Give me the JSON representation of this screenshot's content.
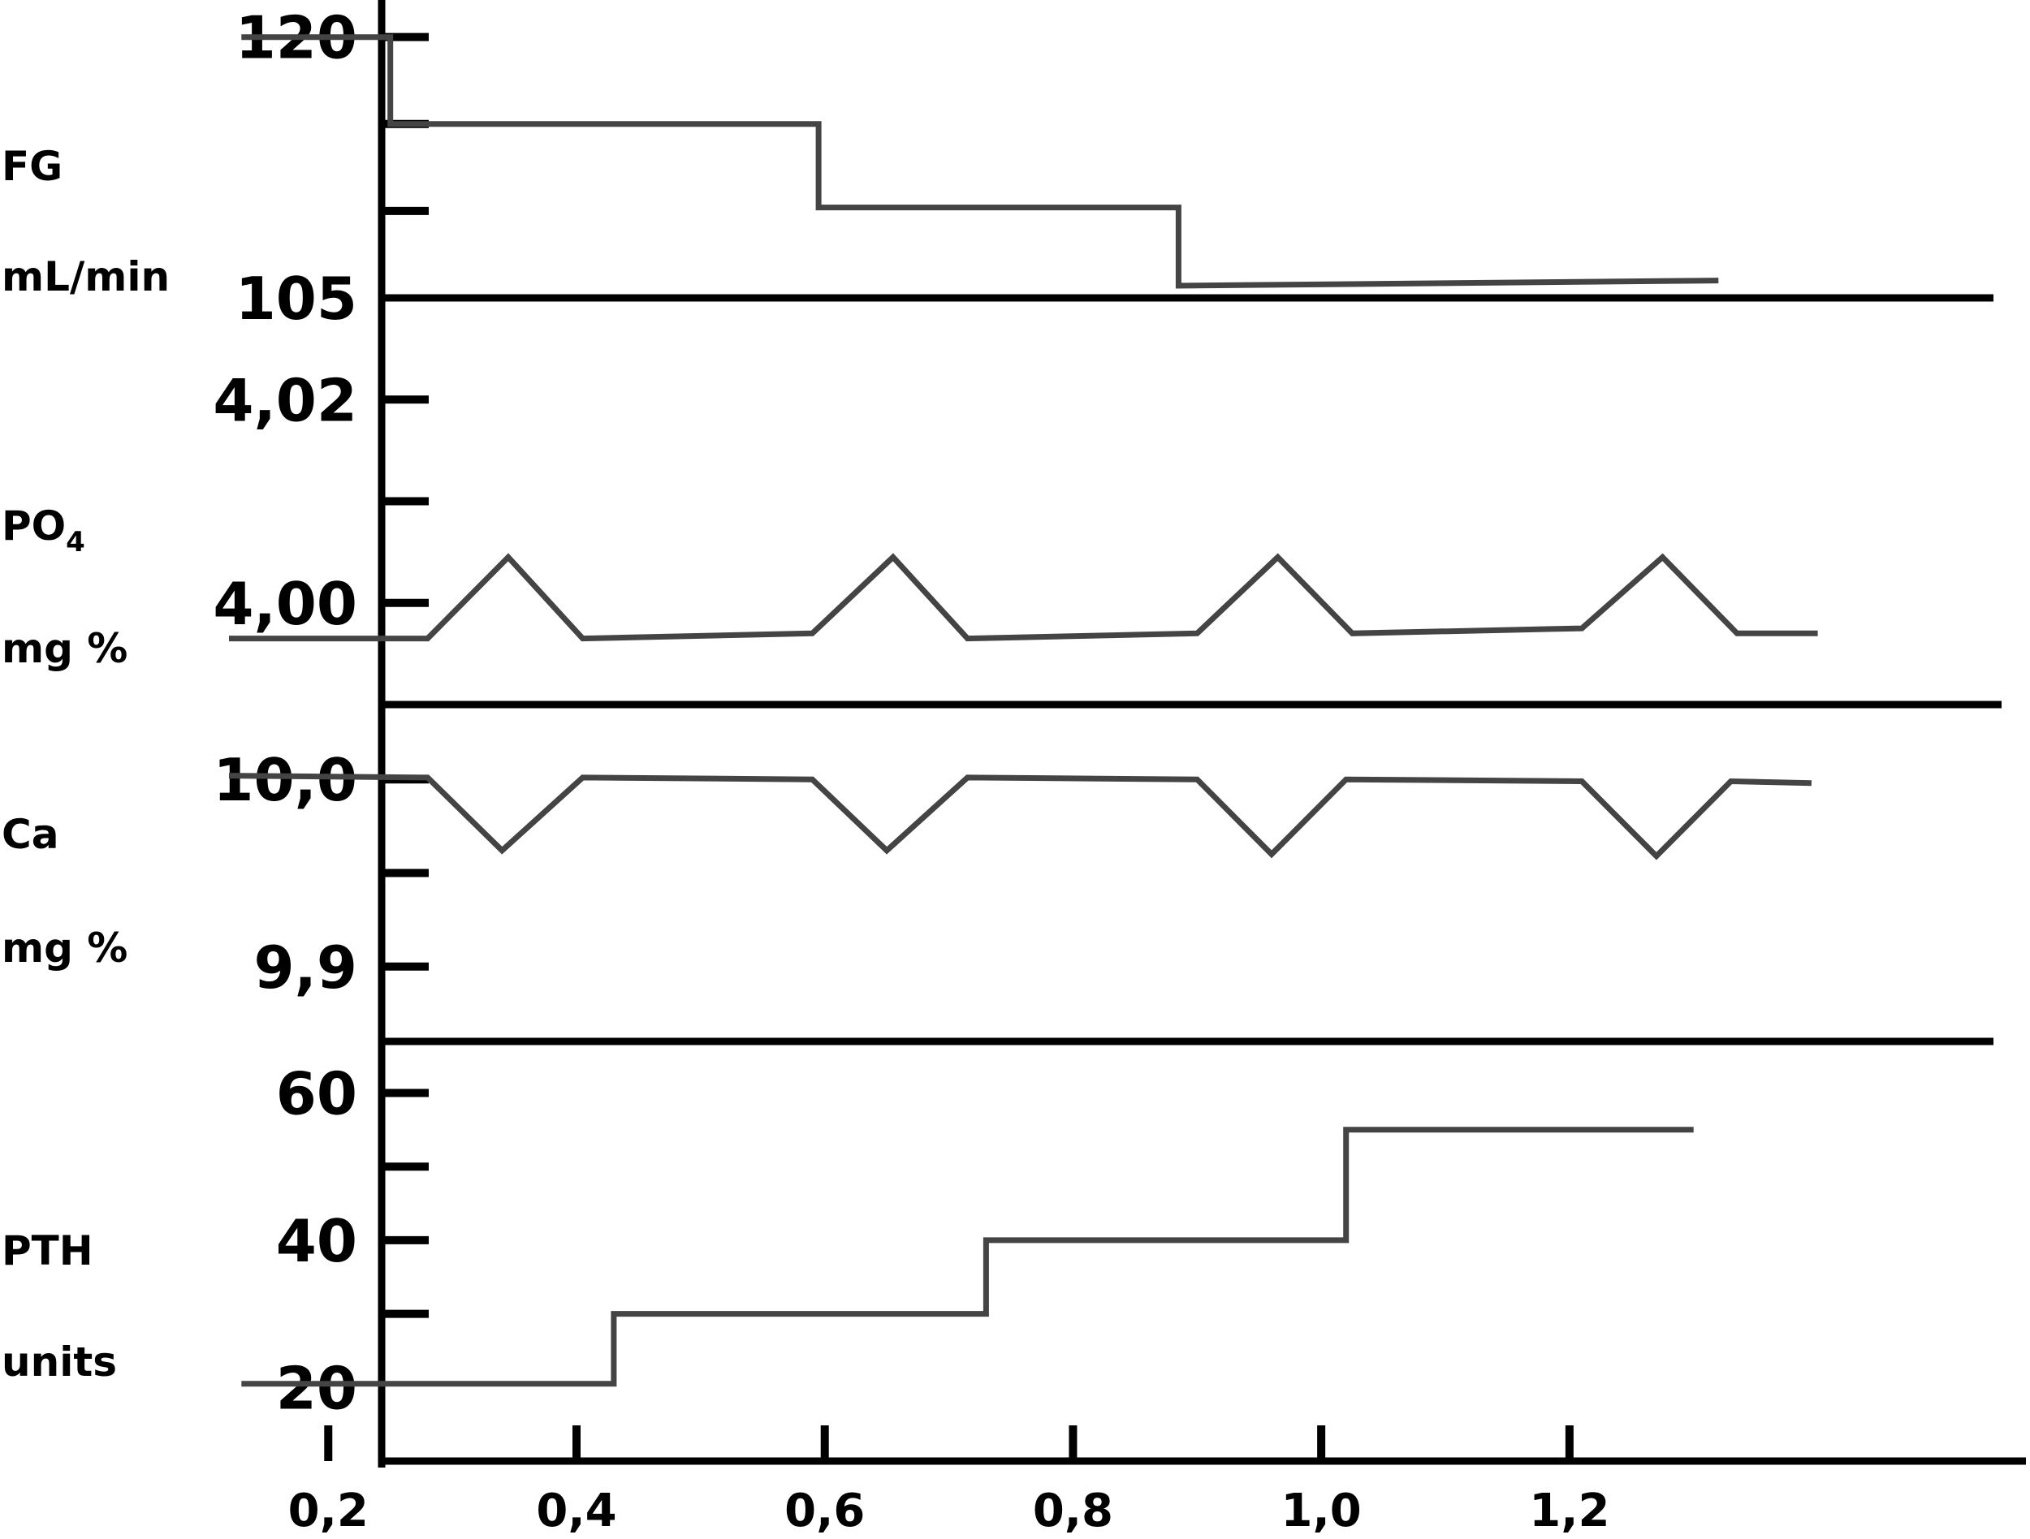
{
  "chart_data": {
    "type": "line",
    "x_tick_labels": [
      "0,2",
      "0,4",
      "0,6",
      "0,8",
      "1,0",
      "1,2"
    ],
    "x_ticks": [
      0.2,
      0.4,
      0.6,
      0.8,
      1.0,
      1.2
    ],
    "xlim": [
      0.05,
      1.45
    ],
    "grid": false,
    "legend": "none",
    "series_color": "#444444",
    "axis_color": "#000000",
    "panels": [
      {
        "id": "fg",
        "label_main": "FG",
        "label_unit": "mL/min",
        "ylim": [
          105,
          124
        ],
        "y_ticks": [
          120,
          115,
          110
        ],
        "y_tick_labels": [
          {
            "value": 120,
            "text": "120"
          },
          {
            "value": 105,
            "text": "105"
          }
        ],
        "points": [
          [
            0.13,
            120
          ],
          [
            0.25,
            120
          ],
          [
            0.25,
            115
          ],
          [
            0.595,
            115
          ],
          [
            0.595,
            110.2
          ],
          [
            0.885,
            110.2
          ],
          [
            0.885,
            105.7
          ],
          [
            1.32,
            106
          ]
        ]
      },
      {
        "id": "po4",
        "label_main": "PO",
        "label_sub": "4",
        "label_unit": "mg %",
        "ylim": [
          3.99,
          4.03
        ],
        "y_ticks": [
          4.02,
          4.01,
          4.0
        ],
        "y_tick_labels": [
          {
            "value": 4.02,
            "text": "4,02"
          },
          {
            "value": 4.0,
            "text": "4,00"
          }
        ],
        "points": [
          [
            0.12,
            3.9965
          ],
          [
            0.28,
            3.9965
          ],
          [
            0.345,
            4.0045
          ],
          [
            0.405,
            3.9965
          ],
          [
            0.59,
            3.997
          ],
          [
            0.655,
            4.0045
          ],
          [
            0.715,
            3.9965
          ],
          [
            0.9,
            3.997
          ],
          [
            0.965,
            4.0045
          ],
          [
            1.025,
            3.997
          ],
          [
            1.21,
            3.9975
          ],
          [
            1.275,
            4.0045
          ],
          [
            1.335,
            3.997
          ],
          [
            1.4,
            3.997
          ]
        ]
      },
      {
        "id": "ca",
        "label_main": "Ca",
        "label_unit": "mg %",
        "ylim": [
          9.86,
          10.04
        ],
        "y_ticks": [
          10.0,
          9.95,
          9.9
        ],
        "y_tick_labels": [
          {
            "value": 10.0,
            "text": "10,0"
          },
          {
            "value": 9.9,
            "text": "9,9"
          }
        ],
        "points": [
          [
            0.12,
            10.002
          ],
          [
            0.28,
            10.001
          ],
          [
            0.34,
            9.962
          ],
          [
            0.405,
            10.001
          ],
          [
            0.59,
            10.0
          ],
          [
            0.65,
            9.962
          ],
          [
            0.715,
            10.001
          ],
          [
            0.9,
            10.0
          ],
          [
            0.96,
            9.96
          ],
          [
            1.02,
            10.0
          ],
          [
            1.21,
            9.999
          ],
          [
            1.27,
            9.959
          ],
          [
            1.33,
            9.999
          ],
          [
            1.395,
            9.998
          ]
        ]
      },
      {
        "id": "pth",
        "label_main": "PTH",
        "label_unit": "units",
        "ylim": [
          10,
          67
        ],
        "y_ticks": [
          60,
          50,
          40,
          30
        ],
        "y_tick_labels": [
          {
            "value": 60,
            "text": "60"
          },
          {
            "value": 40,
            "text": "40"
          },
          {
            "value": 20,
            "text": "20"
          }
        ],
        "points": [
          [
            0.13,
            20.5
          ],
          [
            0.43,
            20.5
          ],
          [
            0.43,
            30
          ],
          [
            0.73,
            30
          ],
          [
            0.73,
            40
          ],
          [
            1.02,
            40
          ],
          [
            1.02,
            55
          ],
          [
            1.3,
            55
          ]
        ]
      }
    ]
  }
}
